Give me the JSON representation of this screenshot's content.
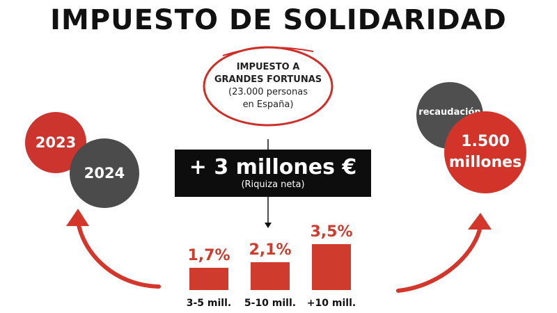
{
  "title": "IMPUESTO DE SOLIDARIDAD",
  "tax_note": {
    "line1": "IMPUESTO A",
    "line2": "GRANDES FORTUNAS",
    "line3": "(23.000 personas",
    "line4": "en España)"
  },
  "years": [
    "2023",
    "2024"
  ],
  "wealth": {
    "amount": "+ 3 millones €",
    "note": "(Riquiza neta)"
  },
  "revenue": {
    "label": "recaudación",
    "value_line1": "1.500",
    "value_line2": "millones"
  },
  "rates": [
    {
      "bracket": "3-5 mill.",
      "rate_label": "1,7%",
      "value": 1.7
    },
    {
      "bracket": "5-10 mill.",
      "rate_label": "2,1%",
      "value": 2.1
    },
    {
      "bracket": "+10 mill.",
      "rate_label": "3,5%",
      "value": 3.5
    }
  ],
  "colors": {
    "accent": "#cf3b2c",
    "dark": "#4b4b4b",
    "black": "#0d0d0d"
  }
}
